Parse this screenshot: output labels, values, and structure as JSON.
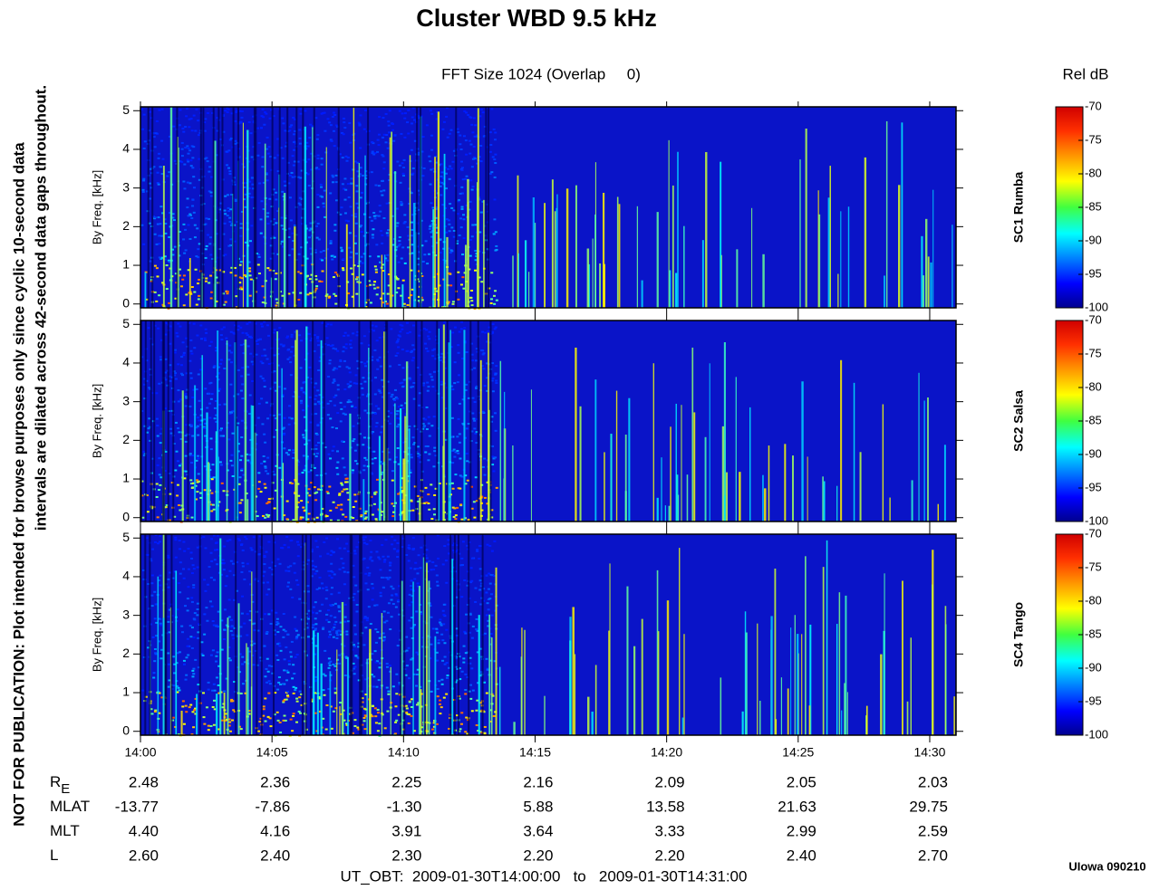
{
  "title": "Cluster WBD 9.5 kHz",
  "subtitle": "FFT Size 1024 (Overlap     0)",
  "colorbar_title": "Rel dB",
  "note_lines": [
    "NOT FOR PUBLICATION:  Plot intended for browse purposes only since cyclic 10-second data",
    "intervals are dilated across 42-second data gaps throughout."
  ],
  "ephemeris": [
    {
      "label": "R",
      "subscript": "E",
      "values": [
        "2.48",
        "2.36",
        "2.25",
        "2.16",
        "2.09",
        "2.05",
        "2.03"
      ]
    },
    {
      "label": "MLAT",
      "values": [
        "-13.77",
        "-7.86",
        "-1.30",
        "5.88",
        "13.58",
        "21.63",
        "29.75"
      ]
    },
    {
      "label": "MLT",
      "values": [
        "4.40",
        "4.16",
        "3.91",
        "3.64",
        "3.33",
        "2.99",
        "2.59"
      ]
    },
    {
      "label": "L",
      "values": [
        "2.60",
        "2.40",
        "2.30",
        "2.20",
        "2.20",
        "2.40",
        "2.70"
      ]
    }
  ],
  "time_range": "UT_OBT:  2009-01-30T14:00:00   to   2009-01-30T14:31:00",
  "credit": "UIowa 090210",
  "chart_data": [
    {
      "type": "spectrogram",
      "ylabel": "By Freq. [kHz]",
      "side_label": "SC1 Rumba",
      "ylim": [
        -0.1,
        5.1
      ],
      "yticks": [
        0,
        1,
        2,
        3,
        4,
        5
      ],
      "clim": [
        -100,
        -70
      ],
      "cticks": [
        -70,
        -75,
        -80,
        -85,
        -90,
        -95,
        -100
      ]
    },
    {
      "type": "spectrogram",
      "ylabel": "By Freq. [kHz]",
      "side_label": "SC2 Salsa",
      "ylim": [
        -0.1,
        5.1
      ],
      "yticks": [
        0,
        1,
        2,
        3,
        4,
        5
      ],
      "clim": [
        -100,
        -70
      ],
      "cticks": [
        -70,
        -75,
        -80,
        -85,
        -90,
        -95,
        -100
      ]
    },
    {
      "type": "spectrogram",
      "ylabel": "By Freq. [kHz]",
      "side_label": "SC4 Tango",
      "ylim": [
        -0.1,
        5.1
      ],
      "yticks": [
        0,
        1,
        2,
        3,
        4,
        5
      ],
      "clim": [
        -100,
        -70
      ],
      "cticks": [
        -70,
        -75,
        -80,
        -85,
        -90,
        -95,
        -100
      ],
      "xlim": [
        0,
        31
      ],
      "xticks": [
        {
          "value": 0,
          "label": "14:00"
        },
        {
          "value": 5,
          "label": "14:05"
        },
        {
          "value": 10,
          "label": "14:10"
        },
        {
          "value": 15,
          "label": "14:15"
        },
        {
          "value": 20,
          "label": "14:20"
        },
        {
          "value": 25,
          "label": "14:25"
        },
        {
          "value": 30,
          "label": "14:30"
        }
      ]
    }
  ]
}
